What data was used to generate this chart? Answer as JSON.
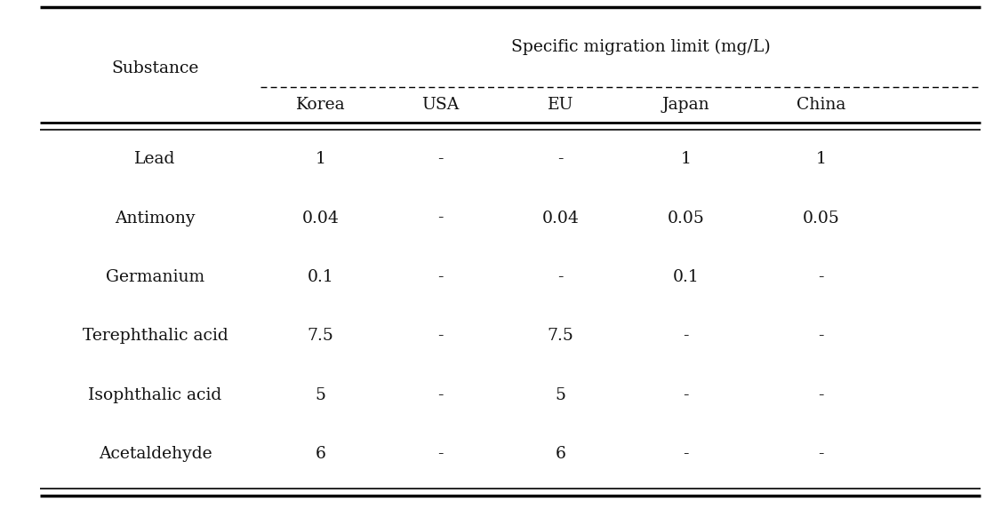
{
  "title_row": "Specific migration limit (mg/L)",
  "col_header_row1": "Substance",
  "col_headers": [
    "Korea",
    "USA",
    "EU",
    "Japan",
    "China"
  ],
  "rows": [
    [
      "Lead",
      "1",
      "-",
      "-",
      "1",
      "1"
    ],
    [
      "Antimony",
      "0.04",
      "-",
      "0.04",
      "0.05",
      "0.05"
    ],
    [
      "Germanium",
      "0.1",
      "-",
      "-",
      "0.1",
      "-"
    ],
    [
      "Terephthalic acid",
      "7.5",
      "-",
      "7.5",
      "-",
      "-"
    ],
    [
      "Isophthalic acid",
      "5",
      "-",
      "5",
      "-",
      "-"
    ],
    [
      "Acetaldehyde",
      "6",
      "-",
      "6",
      "-",
      "-"
    ]
  ],
  "background_color": "#ffffff",
  "text_color": "#111111",
  "font_size": 13.5,
  "figsize": [
    11.26,
    5.82
  ],
  "dpi": 100
}
